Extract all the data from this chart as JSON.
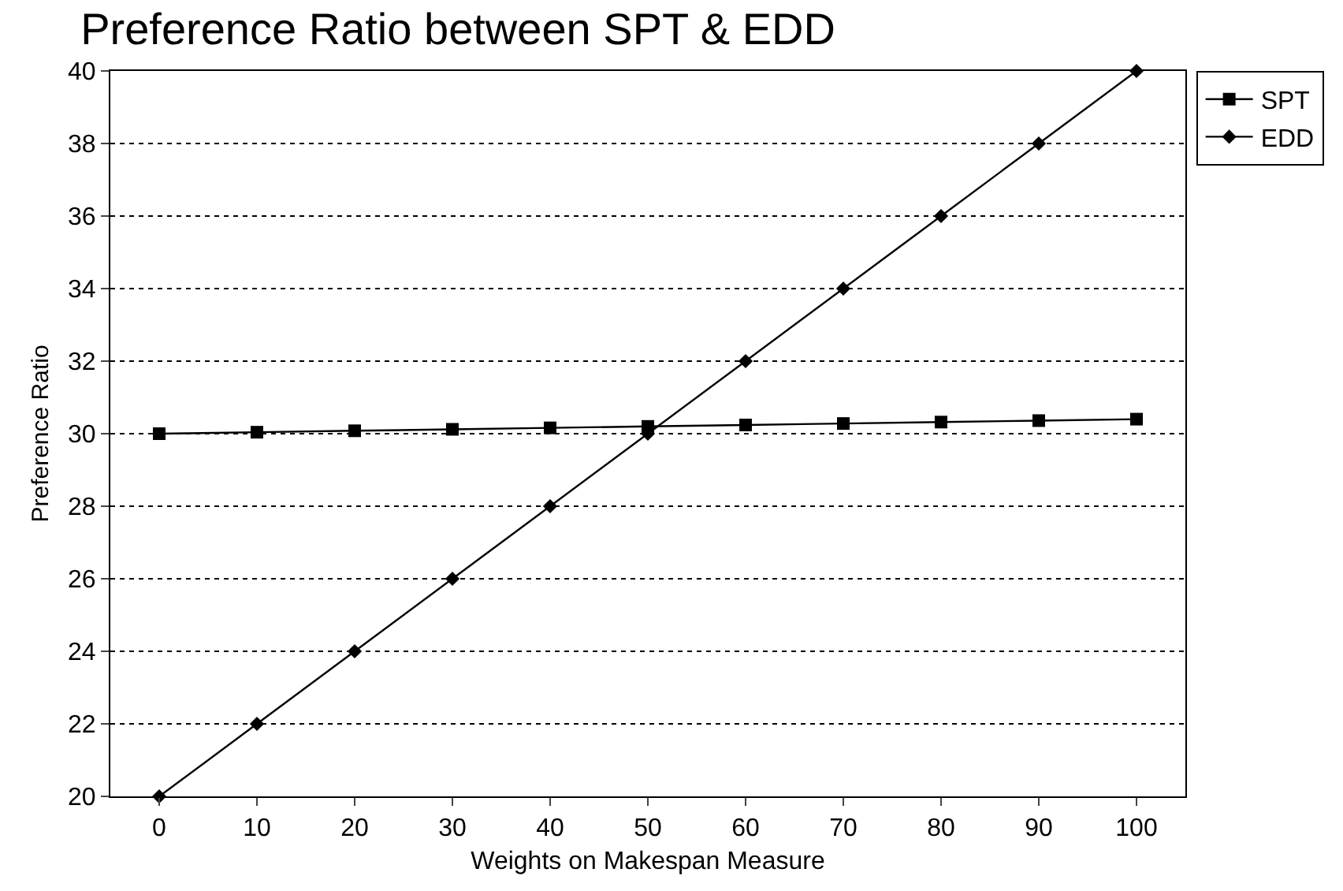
{
  "chart_data": {
    "type": "line",
    "title": "Preference Ratio between SPT & EDD",
    "xlabel": "Weights on Makespan Measure",
    "ylabel": "Preference Ratio",
    "x": [
      0,
      10,
      20,
      30,
      40,
      50,
      60,
      70,
      80,
      90,
      100
    ],
    "series": [
      {
        "name": "SPT",
        "color": "#000000",
        "marker": "square",
        "values": [
          30.0,
          30.04,
          30.08,
          30.12,
          30.16,
          30.2,
          30.24,
          30.28,
          30.32,
          30.36,
          30.4
        ]
      },
      {
        "name": "EDD",
        "color": "#000000",
        "marker": "diamond",
        "values": [
          20,
          22,
          24,
          26,
          28,
          30,
          32,
          34,
          36,
          38,
          40
        ]
      }
    ],
    "xlim": [
      -5,
      105
    ],
    "xticks": [
      0,
      10,
      20,
      30,
      40,
      50,
      60,
      70,
      80,
      90,
      100
    ],
    "ylim": [
      20,
      40
    ],
    "yticks": [
      20,
      22,
      24,
      26,
      28,
      30,
      32,
      34,
      36,
      38,
      40
    ],
    "grid": "y",
    "legend": "top right",
    "line_style": "solid"
  }
}
